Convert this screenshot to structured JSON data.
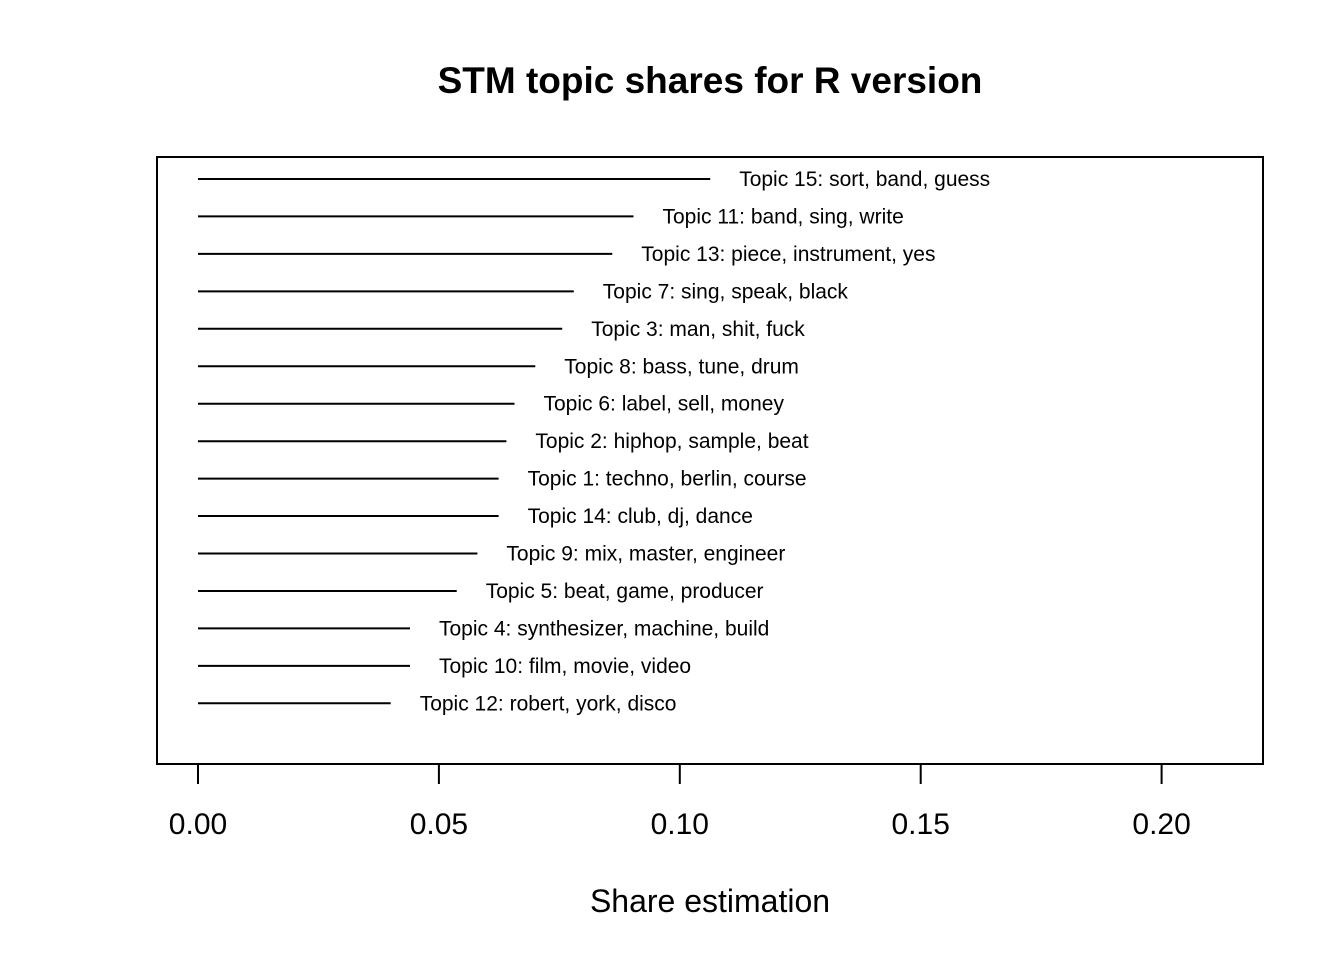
{
  "chart_data": {
    "type": "bar",
    "orientation": "horizontal",
    "title": "STM topic shares for R version",
    "xlabel": "Share estimation",
    "ylabel": "",
    "xlim": [
      0.0,
      0.22
    ],
    "xticks": [
      0.0,
      0.05,
      0.1,
      0.15,
      0.2
    ],
    "xtick_labels": [
      "0.00",
      "0.05",
      "0.10",
      "0.15",
      "0.20"
    ],
    "grid": false,
    "legend": "none",
    "categories": [
      "Topic 15: sort, band, guess",
      "Topic 11: band, sing, write",
      "Topic 13: piece, instrument, yes",
      "Topic 7: sing, speak, black",
      "Topic 3: man, shit, fuck",
      "Topic 8: bass, tune, drum",
      "Topic 6: label, sell, money",
      "Topic 2: hiphop, sample, beat",
      "Topic 1: techno, berlin, course",
      "Topic 14: club, dj, dance",
      "Topic 9: mix, master, engineer",
      "Topic 5: beat, game, producer",
      "Topic 4: synthesizer, machine, build",
      "Topic 10: film, movie, video",
      "Topic 12: robert, york, disco"
    ],
    "values": [
      0.1063,
      0.0904,
      0.086,
      0.078,
      0.0756,
      0.07,
      0.0657,
      0.064,
      0.0624,
      0.0624,
      0.058,
      0.0537,
      0.044,
      0.044,
      0.04
    ]
  }
}
